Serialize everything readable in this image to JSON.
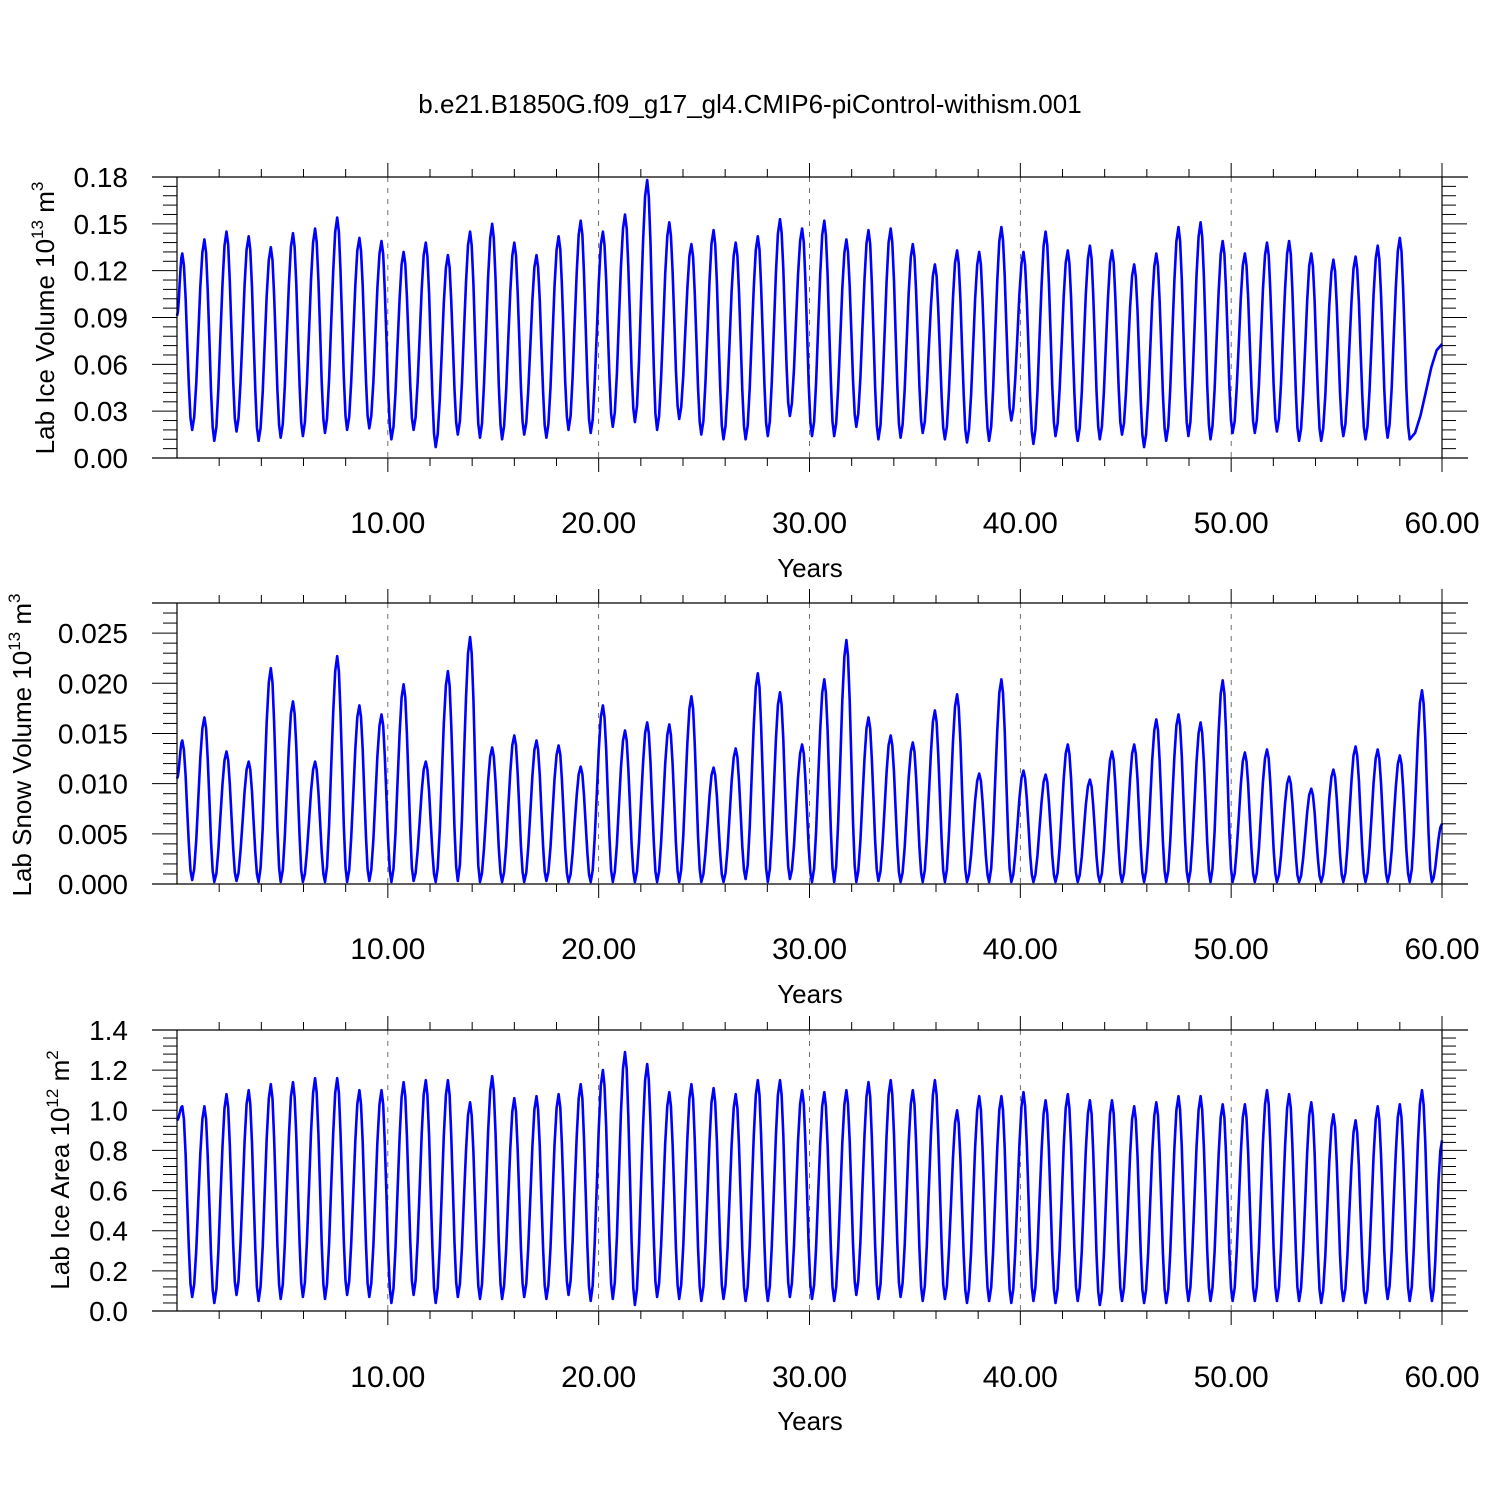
{
  "title": "b.e21.B1850G.f09_g17_gl4.CMIP6-piControl-withism.001",
  "series_color": "#0000ff",
  "chart_data": [
    {
      "type": "line",
      "ylabel": "Lab Ice Volume 10",
      "ylabel_exp": "13",
      "ylabel_unit": " m",
      "ylabel_unit_exp": "3",
      "xlabel": "Years",
      "xlim": [
        0,
        60
      ],
      "ylim": [
        0,
        0.18
      ],
      "xticks": [
        {
          "v": 10,
          "label": "10.00"
        },
        {
          "v": 20,
          "label": "20.00"
        },
        {
          "v": 30,
          "label": "30.00"
        },
        {
          "v": 40,
          "label": "40.00"
        },
        {
          "v": 50,
          "label": "50.00"
        },
        {
          "v": 60,
          "label": "60.00"
        }
      ],
      "yticks": [
        {
          "v": 0,
          "label": "0.00"
        },
        {
          "v": 0.03,
          "label": "0.03"
        },
        {
          "v": 0.06,
          "label": "0.06"
        },
        {
          "v": 0.09,
          "label": "0.09"
        },
        {
          "v": 0.12,
          "label": "0.12"
        },
        {
          "v": 0.15,
          "label": "0.15"
        },
        {
          "v": 0.18,
          "label": "0.18"
        }
      ],
      "series": [
        {
          "peaks": [
            0.131,
            0.14,
            0.145,
            0.142,
            0.135,
            0.144,
            0.147,
            0.154,
            0.141,
            0.139,
            0.132,
            0.138,
            0.13,
            0.145,
            0.15,
            0.138,
            0.13,
            0.142,
            0.152,
            0.145,
            0.156,
            0.178,
            0.151,
            0.137,
            0.146,
            0.138,
            0.142,
            0.153,
            0.147,
            0.152,
            0.14,
            0.146,
            0.147,
            0.137,
            0.124,
            0.133,
            0.132,
            0.148,
            0.132,
            0.145,
            0.133,
            0.136,
            0.133,
            0.124,
            0.131,
            0.148,
            0.151,
            0.139,
            0.131,
            0.138,
            0.139,
            0.131,
            0.127,
            0.129,
            0.136,
            0.141
          ],
          "troughs": [
            0.018,
            0.011,
            0.017,
            0.011,
            0.013,
            0.014,
            0.016,
            0.018,
            0.019,
            0.012,
            0.018,
            0.007,
            0.015,
            0.013,
            0.012,
            0.015,
            0.013,
            0.018,
            0.016,
            0.02,
            0.023,
            0.018,
            0.025,
            0.015,
            0.012,
            0.012,
            0.014,
            0.027,
            0.014,
            0.014,
            0.02,
            0.012,
            0.013,
            0.016,
            0.012,
            0.01,
            0.011,
            0.024,
            0.009,
            0.014,
            0.011,
            0.012,
            0.015,
            0.007,
            0.011,
            0.014,
            0.012,
            0.016,
            0.016,
            0.017,
            0.011,
            0.011,
            0.014,
            0.012,
            0.013,
            0.012
          ],
          "start": 0.091,
          "end": 0.073
        }
      ]
    },
    {
      "type": "line",
      "ylabel": "Lab Snow Volume 10",
      "ylabel_exp": "13",
      "ylabel_unit": " m",
      "ylabel_unit_exp": "3",
      "xlabel": "Years",
      "xlim": [
        0,
        60
      ],
      "ylim": [
        0,
        0.028
      ],
      "xticks": [
        {
          "v": 10,
          "label": "10.00"
        },
        {
          "v": 20,
          "label": "20.00"
        },
        {
          "v": 30,
          "label": "30.00"
        },
        {
          "v": 40,
          "label": "40.00"
        },
        {
          "v": 50,
          "label": "50.00"
        },
        {
          "v": 60,
          "label": "60.00"
        }
      ],
      "yticks": [
        {
          "v": 0,
          "label": "0.000"
        },
        {
          "v": 0.005,
          "label": "0.005"
        },
        {
          "v": 0.01,
          "label": "0.010"
        },
        {
          "v": 0.015,
          "label": "0.015"
        },
        {
          "v": 0.02,
          "label": "0.020"
        },
        {
          "v": 0.025,
          "label": "0.025"
        }
      ],
      "series": [
        {
          "peaks": [
            0.0143,
            0.0166,
            0.0132,
            0.0122,
            0.0215,
            0.0182,
            0.0122,
            0.0227,
            0.0178,
            0.0169,
            0.0199,
            0.0122,
            0.0212,
            0.0246,
            0.0136,
            0.0148,
            0.0143,
            0.0138,
            0.0117,
            0.0178,
            0.0153,
            0.0161,
            0.0159,
            0.0187,
            0.0116,
            0.0135,
            0.021,
            0.0191,
            0.0139,
            0.0204,
            0.0243,
            0.0166,
            0.0148,
            0.0141,
            0.0173,
            0.0189,
            0.011,
            0.0204,
            0.0113,
            0.0109,
            0.0139,
            0.0104,
            0.0132,
            0.0139,
            0.0164,
            0.0169,
            0.0161,
            0.0203,
            0.0131,
            0.0134,
            0.0107,
            0.0095,
            0.0114,
            0.0137,
            0.0134,
            0.0128,
            0.0193
          ],
          "troughs": [
            0.0004,
            0.0002,
            0.0003,
            0.0002,
            0.0002,
            0.0002,
            0.0002,
            0.0002,
            0.0003,
            0.0002,
            0.0003,
            0.0002,
            0.0003,
            0.0002,
            0.0002,
            0.0002,
            0.0003,
            0.0002,
            0.0002,
            0.0002,
            0.0002,
            0.0002,
            0.0002,
            0.0002,
            0.0002,
            0.0005,
            0.0002,
            0.0005,
            0.0002,
            0.0002,
            0.0002,
            0.0003,
            0.0002,
            0.0002,
            0.0002,
            0.0002,
            0.0002,
            0.0002,
            0.0002,
            0.0002,
            0.0002,
            0.0002,
            0.0002,
            0.0002,
            0.0002,
            0.0002,
            0.0002,
            0.0002,
            0.0002,
            0.0002,
            0.0002,
            0.0002,
            0.0002,
            0.0002,
            0.0002,
            0.0002,
            0.0002
          ],
          "start": 0.0105,
          "end": 0.006
        }
      ]
    },
    {
      "type": "line",
      "ylabel": "Lab Ice Area 10",
      "ylabel_exp": "12",
      "ylabel_unit": " m",
      "ylabel_unit_exp": "2",
      "xlabel": "Years",
      "xlim": [
        0,
        60
      ],
      "ylim": [
        0,
        1.4
      ],
      "xticks": [
        {
          "v": 10,
          "label": "10.00"
        },
        {
          "v": 20,
          "label": "20.00"
        },
        {
          "v": 30,
          "label": "30.00"
        },
        {
          "v": 40,
          "label": "40.00"
        },
        {
          "v": 50,
          "label": "50.00"
        },
        {
          "v": 60,
          "label": "60.00"
        }
      ],
      "yticks": [
        {
          "v": 0,
          "label": "0.0"
        },
        {
          "v": 0.2,
          "label": "0.2"
        },
        {
          "v": 0.4,
          "label": "0.4"
        },
        {
          "v": 0.6,
          "label": "0.6"
        },
        {
          "v": 0.8,
          "label": "0.8"
        },
        {
          "v": 1.0,
          "label": "1.0"
        },
        {
          "v": 1.2,
          "label": "1.2"
        },
        {
          "v": 1.4,
          "label": "1.4"
        }
      ],
      "series": [
        {
          "peaks": [
            1.02,
            1.02,
            1.08,
            1.1,
            1.13,
            1.14,
            1.16,
            1.16,
            1.1,
            1.1,
            1.14,
            1.15,
            1.15,
            1.04,
            1.17,
            1.06,
            1.07,
            1.08,
            1.13,
            1.2,
            1.29,
            1.23,
            1.09,
            1.13,
            1.11,
            1.08,
            1.15,
            1.15,
            1.1,
            1.09,
            1.1,
            1.14,
            1.15,
            1.1,
            1.15,
            1.0,
            1.07,
            1.07,
            1.09,
            1.05,
            1.08,
            1.05,
            1.05,
            1.02,
            1.04,
            1.07,
            1.07,
            1.03,
            1.03,
            1.1,
            1.08,
            1.04,
            0.98,
            0.95,
            1.02,
            1.03,
            1.1
          ],
          "troughs": [
            0.07,
            0.04,
            0.08,
            0.05,
            0.06,
            0.07,
            0.06,
            0.08,
            0.07,
            0.04,
            0.08,
            0.04,
            0.07,
            0.06,
            0.06,
            0.07,
            0.06,
            0.08,
            0.05,
            0.06,
            0.03,
            0.07,
            0.06,
            0.05,
            0.06,
            0.05,
            0.05,
            0.07,
            0.06,
            0.05,
            0.08,
            0.06,
            0.07,
            0.05,
            0.06,
            0.04,
            0.05,
            0.04,
            0.05,
            0.04,
            0.05,
            0.03,
            0.05,
            0.04,
            0.04,
            0.05,
            0.05,
            0.05,
            0.05,
            0.05,
            0.05,
            0.04,
            0.05,
            0.04,
            0.06,
            0.05,
            0.05
          ],
          "start": 0.95,
          "end": 0.85
        }
      ]
    }
  ]
}
